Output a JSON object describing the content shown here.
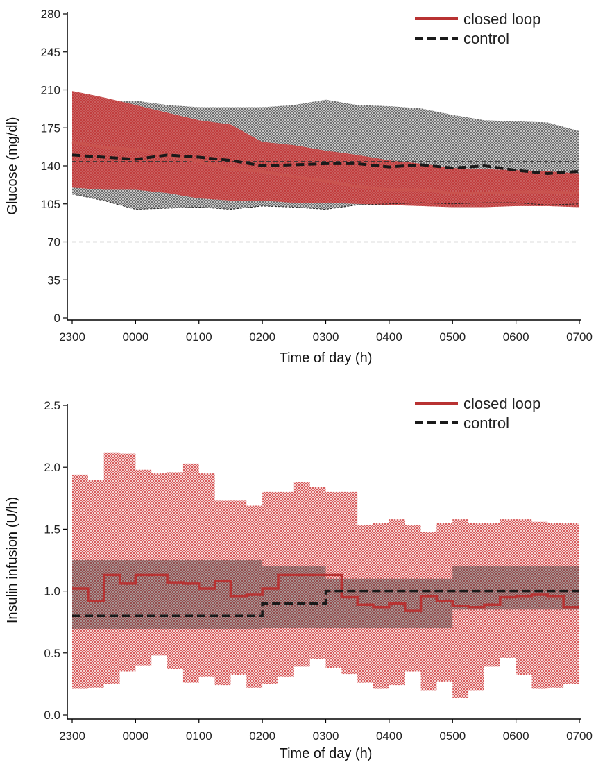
{
  "chart_data": [
    {
      "type": "area",
      "xlabel": "Time of day (h)",
      "ylabel": "Glucose (mg/dl)",
      "x_ticks": [
        "2300",
        "0000",
        "0100",
        "0200",
        "0300",
        "0400",
        "0500",
        "0600",
        "0700"
      ],
      "xlim": [
        0,
        8
      ],
      "ylim": [
        0,
        280
      ],
      "y_ticks": [
        0,
        35,
        70,
        105,
        140,
        175,
        210,
        245,
        280
      ],
      "legend": {
        "position": "top-right",
        "entries": [
          "closed loop",
          "control"
        ]
      },
      "reference_lines": [
        144,
        70
      ],
      "colors": {
        "closed_loop": "#b83232",
        "control": "#1a1a1a"
      },
      "x": [
        0,
        0.5,
        1,
        1.5,
        2,
        2.5,
        3,
        3.5,
        4,
        4.5,
        5,
        5.5,
        6,
        6.5,
        7,
        7.5,
        8
      ],
      "series": [
        {
          "name": "closed loop",
          "style": "solid",
          "values": [
            162,
            157,
            155,
            150,
            144,
            137,
            135,
            130,
            126,
            121,
            118,
            118,
            115,
            115,
            116,
            116,
            115
          ],
          "lower": [
            120,
            118,
            118,
            115,
            110,
            108,
            108,
            106,
            106,
            105,
            104,
            103,
            102,
            102,
            103,
            103,
            102
          ],
          "upper": [
            209,
            203,
            196,
            189,
            182,
            178,
            162,
            159,
            154,
            150,
            145,
            142,
            138,
            137,
            136,
            135,
            133
          ]
        },
        {
          "name": "control",
          "style": "dashed",
          "values": [
            150,
            148,
            146,
            150,
            148,
            145,
            140,
            141,
            142,
            142,
            139,
            141,
            138,
            140,
            136,
            133,
            135
          ],
          "lower": [
            114,
            108,
            100,
            101,
            102,
            100,
            103,
            102,
            100,
            104,
            105,
            106,
            105,
            106,
            106,
            104,
            105
          ],
          "upper": [
            200,
            199,
            200,
            196,
            194,
            194,
            194,
            196,
            201,
            196,
            195,
            193,
            187,
            182,
            181,
            180,
            172
          ]
        }
      ]
    },
    {
      "type": "area",
      "xlabel": "Time of day (h)",
      "ylabel": "Insulin infusion (U/h)",
      "x_ticks": [
        "2300",
        "0000",
        "0100",
        "0200",
        "0300",
        "0400",
        "0500",
        "0600",
        "0700"
      ],
      "xlim": [
        0,
        8
      ],
      "ylim": [
        0,
        2.5
      ],
      "y_ticks": [
        "0.0",
        "0.5",
        "1.0",
        "1.5",
        "2.0",
        "2.5"
      ],
      "legend": {
        "position": "top-right",
        "entries": [
          "closed loop",
          "control"
        ]
      },
      "colors": {
        "closed_loop": "#b83232",
        "control": "#1a1a1a"
      },
      "step_edges": [
        0,
        0.25,
        0.5,
        0.75,
        1,
        1.25,
        1.5,
        1.75,
        2,
        2.25,
        2.5,
        2.75,
        3,
        3.25,
        3.5,
        3.75,
        4,
        4.25,
        4.5,
        4.75,
        5,
        5.25,
        5.5,
        5.75,
        6,
        6.25,
        6.5,
        6.75,
        7,
        7.25,
        7.5,
        7.75,
        8
      ],
      "series": [
        {
          "name": "closed loop",
          "style": "solid",
          "values": [
            1.02,
            0.92,
            1.13,
            1.06,
            1.13,
            1.13,
            1.07,
            1.06,
            1.02,
            1.08,
            0.96,
            0.97,
            1.02,
            1.13,
            1.13,
            1.13,
            1.13,
            0.95,
            0.89,
            0.87,
            0.9,
            0.84,
            0.96,
            0.92,
            0.88,
            0.87,
            0.89,
            0.95,
            0.96,
            0.97,
            0.96,
            0.87
          ],
          "lower": [
            0.21,
            0.22,
            0.25,
            0.35,
            0.4,
            0.48,
            0.37,
            0.26,
            0.31,
            0.24,
            0.32,
            0.22,
            0.25,
            0.31,
            0.39,
            0.45,
            0.38,
            0.33,
            0.26,
            0.21,
            0.24,
            0.35,
            0.2,
            0.27,
            0.14,
            0.2,
            0.39,
            0.46,
            0.32,
            0.21,
            0.22,
            0.25
          ],
          "upper": [
            1.94,
            1.9,
            2.12,
            2.11,
            1.98,
            1.95,
            1.96,
            2.03,
            1.95,
            1.73,
            1.73,
            1.69,
            1.8,
            1.8,
            1.88,
            1.84,
            1.8,
            1.8,
            1.53,
            1.55,
            1.58,
            1.53,
            1.48,
            1.55,
            1.58,
            1.55,
            1.55,
            1.58,
            1.58,
            1.56,
            1.55,
            1.55
          ]
        },
        {
          "name": "control",
          "style": "dashed",
          "segments": [
            {
              "from": 0,
              "to": 3,
              "value": 0.8,
              "lower": 0.69,
              "upper": 1.25
            },
            {
              "from": 3,
              "to": 4,
              "value": 0.9,
              "lower": 0.7,
              "upper": 1.2
            },
            {
              "from": 4,
              "to": 6,
              "value": 1.0,
              "lower": 0.7,
              "upper": 1.1
            },
            {
              "from": 6,
              "to": 8,
              "value": 1.0,
              "lower": 0.85,
              "upper": 1.2
            }
          ]
        }
      ]
    }
  ]
}
